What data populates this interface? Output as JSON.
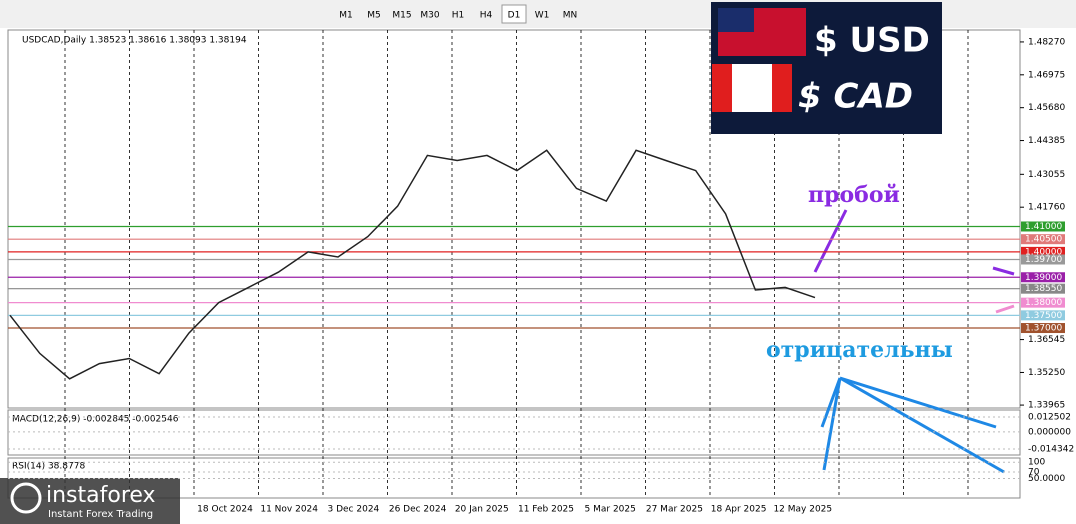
{
  "toolbar": {
    "timeframes": [
      "M1",
      "M5",
      "M15",
      "M30",
      "H1",
      "H4",
      "D1",
      "W1",
      "MN"
    ]
  },
  "chart": {
    "type": "line",
    "header": "USDCAD,Daily 1.38523 1.38616 1.38093 1.38194",
    "closes": [
      1.375,
      1.36,
      1.35,
      1.356,
      1.358,
      1.352,
      1.368,
      1.38,
      1.386,
      1.392,
      1.4,
      1.398,
      1.406,
      1.418,
      1.438,
      1.436,
      1.438,
      1.432,
      1.44,
      1.425,
      1.42,
      1.44,
      1.436,
      1.432,
      1.415,
      1.385,
      1.386,
      1.382
    ],
    "color": "#222222",
    "ylim": [
      1.3385,
      1.4874
    ],
    "yticks": [
      {
        "value": 1.4827,
        "label": "1.48270"
      },
      {
        "value": 1.46975,
        "label": "1.46975"
      },
      {
        "value": 1.4568,
        "label": "1.45680"
      },
      {
        "value": 1.44385,
        "label": "1.44385"
      },
      {
        "value": 1.43055,
        "label": "1.43055"
      },
      {
        "value": 1.4176,
        "label": "1.41760"
      },
      {
        "value": 1.36545,
        "label": "1.36545"
      },
      {
        "value": 1.3525,
        "label": "1.35250"
      },
      {
        "value": 1.33965,
        "label": "1.33965"
      }
    ],
    "levels": [
      {
        "value": 1.41,
        "label": "1.41000",
        "color": "#2e9e2e"
      },
      {
        "value": 1.405,
        "label": "1.40500",
        "color": "#e07a7a"
      },
      {
        "value": 1.4,
        "label": "1.40000",
        "color": "#e02020"
      },
      {
        "value": 1.397,
        "label": "1.39700",
        "color": "#999999"
      },
      {
        "value": 1.39,
        "label": "1.39000",
        "color": "#9a1fa8"
      },
      {
        "value": 1.3855,
        "label": "1.38550",
        "color": "#888888"
      },
      {
        "value": 1.38,
        "label": "1.38000",
        "color": "#f08cd0"
      },
      {
        "value": 1.375,
        "label": "1.37500",
        "color": "#8fcbe0"
      },
      {
        "value": 1.37,
        "label": "1.37000",
        "color": "#a0522d"
      }
    ],
    "dates": [
      "18 Oct 2024",
      "11 Nov 2024",
      "3 Dec 2024",
      "26 Dec 2024",
      "20 Jan 2025",
      "11 Feb 2025",
      "5 Mar 2025",
      "27 Mar 2025",
      "18 Apr 2025",
      "12 May 2025"
    ]
  },
  "macd": {
    "label": "MACD(12,26,9) -0.002845 -0.002546",
    "ylim": [
      -0.0194,
      0.0184
    ],
    "ticks": [
      {
        "value": 0.012502,
        "label": "0.012502"
      },
      {
        "value": 0,
        "label": "0.000000"
      },
      {
        "value": -0.014342,
        "label": "-0.014342"
      }
    ]
  },
  "rsi": {
    "label": "RSI(14) 38.8778",
    "ylim": [
      -10,
      113
    ],
    "ticks": [
      100,
      70,
      {
        "value": 50,
        "label": "50.0000"
      }
    ]
  },
  "annotations": {
    "breakout": "пробой",
    "negative": "отрицательны"
  },
  "banner": {
    "usd": "$ USD",
    "cad": "$ CAD"
  },
  "logo": {
    "name": "instaforex",
    "tagline": "Instant Forex Trading"
  }
}
